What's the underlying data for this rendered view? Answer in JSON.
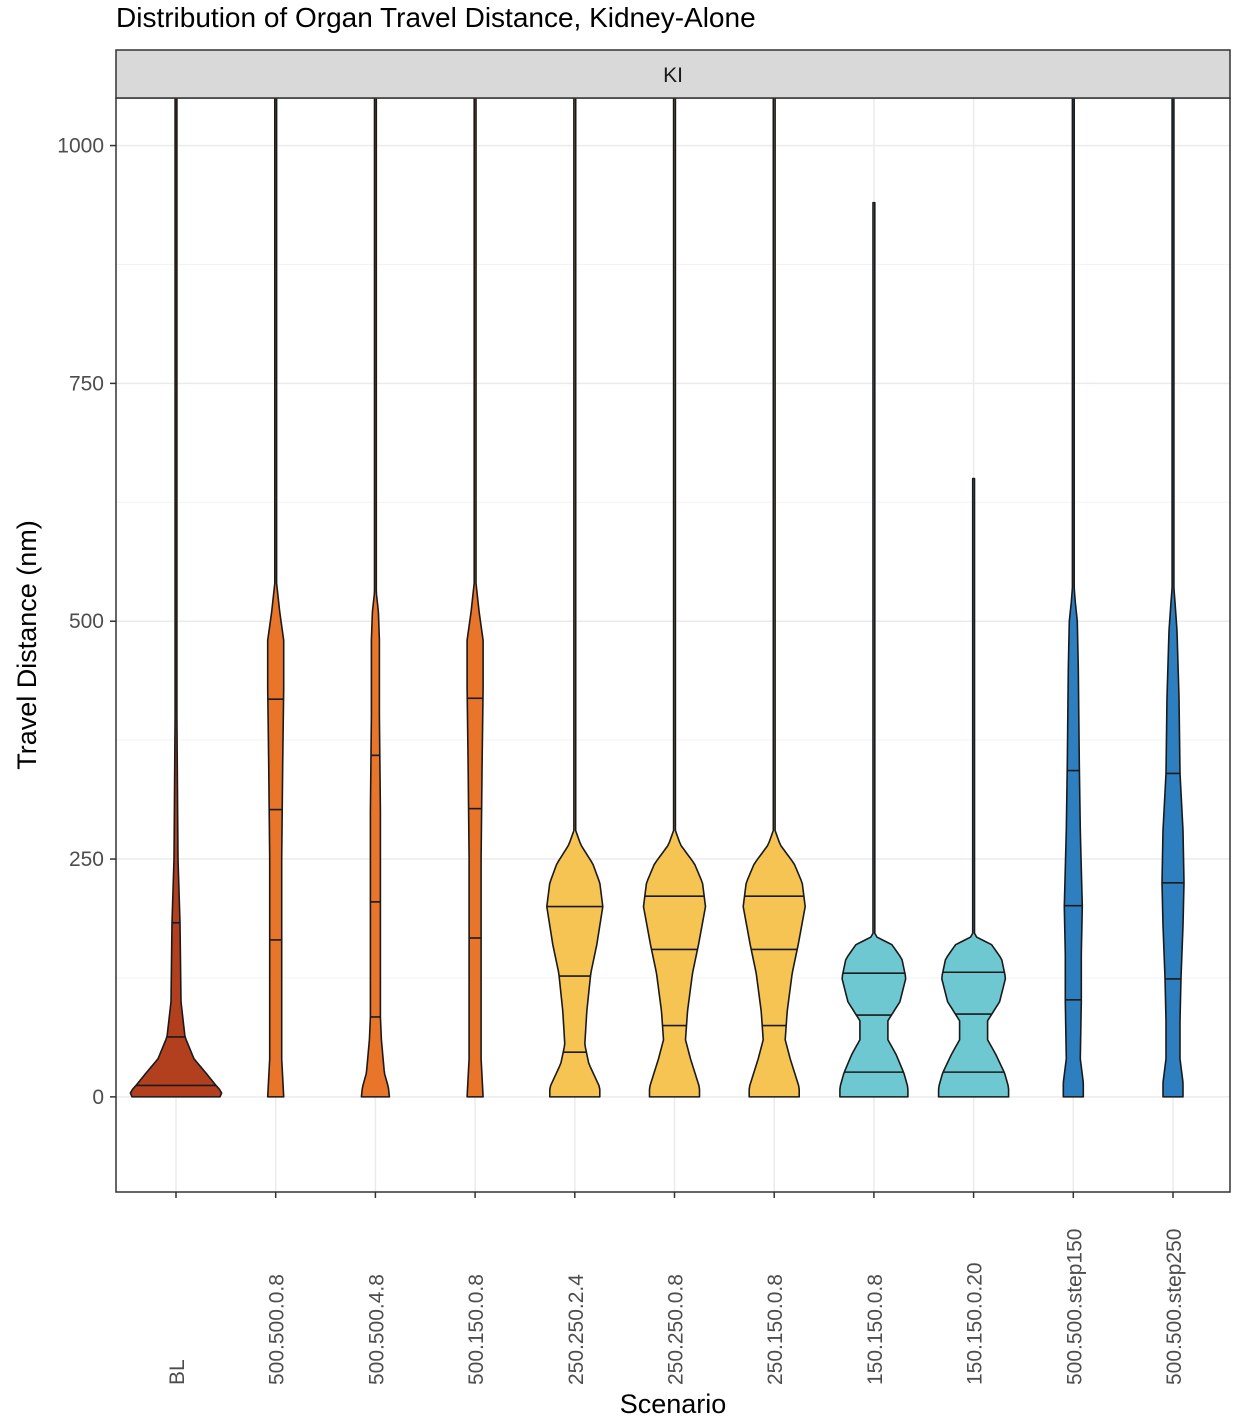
{
  "chart_data": {
    "type": "violin",
    "title": "Distribution of Organ Travel Distance, Kidney-Alone",
    "facet_label": "KI",
    "xlabel": "Scenario",
    "ylabel": "Travel Distance (nm)",
    "ylim": [
      -100,
      1050
    ],
    "yticks": [
      0,
      250,
      500,
      750,
      1000
    ],
    "grid": true,
    "categories": [
      "BL",
      "500.500.0.8",
      "500.500.4.8",
      "500.150.0.8",
      "250.250.2.4",
      "250.250.0.8",
      "250.150.0.8",
      "150.150.0.8",
      "150.150.0.20",
      "500.500.step150",
      "500.500.step250"
    ],
    "series": [
      {
        "category": "BL",
        "color": "#b2401f",
        "max": 1050,
        "q1": 12,
        "median": 63,
        "q3": 183
      },
      {
        "category": "500.500.0.8",
        "color": "#e8752a",
        "max": 1050,
        "q1": 165,
        "median": 302,
        "q3": 418
      },
      {
        "category": "500.500.4.8",
        "color": "#e8752a",
        "max": 1050,
        "q1": 84,
        "median": 205,
        "q3": 359
      },
      {
        "category": "500.150.0.8",
        "color": "#e8752a",
        "max": 1050,
        "q1": 167,
        "median": 303,
        "q3": 419
      },
      {
        "category": "250.250.2.4",
        "color": "#f6c453",
        "max": 1050,
        "q1": 47,
        "median": 127,
        "q3": 200
      },
      {
        "category": "250.250.0.8",
        "color": "#f6c453",
        "max": 1050,
        "q1": 75,
        "median": 155,
        "q3": 211
      },
      {
        "category": "250.150.0.8",
        "color": "#f6c453",
        "max": 1050,
        "q1": 75,
        "median": 155,
        "q3": 211
      },
      {
        "category": "150.150.0.8",
        "color": "#6ec8d1",
        "max": 940,
        "q1": 26,
        "median": 86,
        "q3": 130
      },
      {
        "category": "150.150.0.20",
        "color": "#6ec8d1",
        "max": 650,
        "q1": 26,
        "median": 87,
        "q3": 131
      },
      {
        "category": "500.500.step150",
        "color": "#2e7fbf",
        "max": 1050,
        "q1": 102,
        "median": 201,
        "q3": 343
      },
      {
        "category": "500.500.step250",
        "color": "#2e7fbf",
        "max": 1050,
        "q1": 124,
        "median": 225,
        "q3": 340
      }
    ]
  }
}
